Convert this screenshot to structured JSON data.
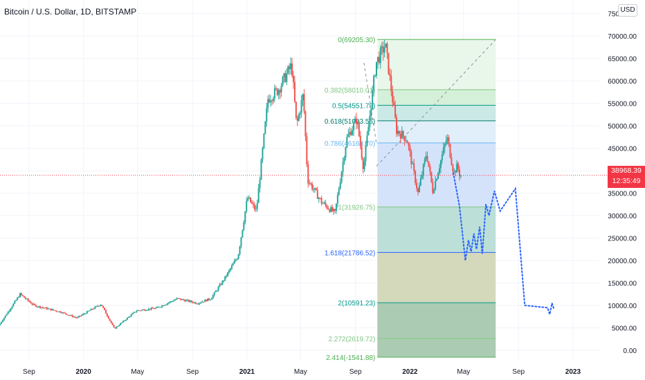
{
  "symbol_title": "Bitcoin / U.S. Dollar, 1D, BITSTAMP",
  "currency_button": "USD",
  "last_price": {
    "price": "38968.39",
    "countdown": "12:35:49"
  },
  "colors": {
    "up": "#26a69a",
    "down": "#ef5350",
    "projection": "#2962ff",
    "price_line": "#f23645",
    "trend_line": "#8a8f99"
  },
  "chart_data": {
    "type": "candlestick",
    "y_axis": {
      "ticks": [
        0,
        5000,
        10000,
        15000,
        20000,
        25000,
        30000,
        35000,
        40000,
        45000,
        50000,
        55000,
        60000,
        65000,
        70000,
        75000
      ],
      "tick_labels": [
        "0.00",
        "5000.00",
        "10000.00",
        "15000.00",
        "20000.00",
        "25000.00",
        "30000.00",
        "35000.00",
        "40000.00",
        "45000.00",
        "50000.00",
        "55000.00",
        "60000.00",
        "65000.00",
        "70000.00",
        "75000.00"
      ],
      "range": [
        -2000,
        78000
      ]
    },
    "x_axis": {
      "labels": [
        {
          "date": "2019-09-01",
          "text": "Sep",
          "bold": false
        },
        {
          "date": "2020-01-01",
          "text": "2020",
          "bold": true
        },
        {
          "date": "2020-05-01",
          "text": "May",
          "bold": false
        },
        {
          "date": "2020-09-01",
          "text": "Sep",
          "bold": false
        },
        {
          "date": "2021-01-01",
          "text": "2021",
          "bold": true
        },
        {
          "date": "2021-05-01",
          "text": "May",
          "bold": false
        },
        {
          "date": "2021-09-01",
          "text": "Sep",
          "bold": false
        },
        {
          "date": "2022-01-01",
          "text": "2022",
          "bold": true
        },
        {
          "date": "2022-05-01",
          "text": "May",
          "bold": false
        },
        {
          "date": "2022-09-01",
          "text": "Sep",
          "bold": false
        },
        {
          "date": "2023-01-01",
          "text": "2023",
          "bold": true
        }
      ],
      "range": [
        "2019-06-28",
        "2023-03-01"
      ]
    },
    "price_path": [
      {
        "date": "2019-06-28",
        "price": 5500
      },
      {
        "date": "2019-08-15",
        "price": 12500
      },
      {
        "date": "2019-09-15",
        "price": 10000
      },
      {
        "date": "2019-11-15",
        "price": 8500
      },
      {
        "date": "2019-12-20",
        "price": 7200
      },
      {
        "date": "2020-02-12",
        "price": 10300
      },
      {
        "date": "2020-03-13",
        "price": 4800
      },
      {
        "date": "2020-05-01",
        "price": 8800
      },
      {
        "date": "2020-06-15",
        "price": 9400
      },
      {
        "date": "2020-08-01",
        "price": 11500
      },
      {
        "date": "2020-09-15",
        "price": 10500
      },
      {
        "date": "2020-10-15",
        "price": 11500
      },
      {
        "date": "2020-11-15",
        "price": 16000
      },
      {
        "date": "2020-12-15",
        "price": 21000
      },
      {
        "date": "2021-01-05",
        "price": 34000
      },
      {
        "date": "2021-01-25",
        "price": 31000
      },
      {
        "date": "2021-02-20",
        "price": 56000
      },
      {
        "date": "2021-03-15",
        "price": 58000
      },
      {
        "date": "2021-04-14",
        "price": 63500
      },
      {
        "date": "2021-04-25",
        "price": 50000
      },
      {
        "date": "2021-05-10",
        "price": 57000
      },
      {
        "date": "2021-05-20",
        "price": 38000
      },
      {
        "date": "2021-06-20",
        "price": 33000
      },
      {
        "date": "2021-07-20",
        "price": 30500
      },
      {
        "date": "2021-08-15",
        "price": 47000
      },
      {
        "date": "2021-09-07",
        "price": 51500
      },
      {
        "date": "2021-09-22",
        "price": 40500
      },
      {
        "date": "2021-10-20",
        "price": 64000
      },
      {
        "date": "2021-11-10",
        "price": 68000
      },
      {
        "date": "2021-12-05",
        "price": 49000
      },
      {
        "date": "2021-12-28",
        "price": 47000
      },
      {
        "date": "2022-01-22",
        "price": 35000
      },
      {
        "date": "2022-02-10",
        "price": 44000
      },
      {
        "date": "2022-02-24",
        "price": 35500
      },
      {
        "date": "2022-03-28",
        "price": 47500
      },
      {
        "date": "2022-04-12",
        "price": 39500
      },
      {
        "date": "2022-04-20",
        "price": 41000
      },
      {
        "date": "2022-04-26",
        "price": 38968
      }
    ],
    "fibonacci": {
      "start_date": "2021-10-20",
      "end_date": "2022-07-12",
      "levels": [
        {
          "label": "0(69205.30)",
          "value": 69205.3,
          "color": "#4caf50",
          "fill": "#e8f5e9"
        },
        {
          "label": "0.382(58010.01)",
          "value": 58010.01,
          "color": "#81c784",
          "fill": "#d3efd6"
        },
        {
          "label": "0.5(54551.78)",
          "value": 54551.78,
          "color": "#009688",
          "fill": "#c8e9e6"
        },
        {
          "label": "0.618(51093.55)",
          "value": 51093.55,
          "color": "#00796b",
          "fill": "#dfeefa"
        },
        {
          "label": "0.786(46168.70)",
          "value": 46168.7,
          "color": "#64b5f6",
          "fill": "#d3e1fa"
        },
        {
          "label": "1(31926.75)",
          "value": 31926.75,
          "color": "#81c784",
          "fill": "#b8ddd6"
        },
        {
          "label": "1.618(21786.52)",
          "value": 21786.52,
          "color": "#2962ff",
          "fill": "#d2d7b7"
        },
        {
          "label": "2(10591.23)",
          "value": 10591.23,
          "color": "#009688",
          "fill": "#a6c9ae"
        },
        {
          "label": "2.272(2619.72)",
          "value": 2619.72,
          "color": "#81c784",
          "fill": "#a6c9ae"
        },
        {
          "label": "2.414(-1541.88)",
          "value": -1541.88,
          "color": "#4caf50",
          "fill": "#a6c9ae"
        }
      ]
    },
    "trend_lines": [
      {
        "from": {
          "date": "2021-09-20",
          "price": 64000
        },
        "to": {
          "date": "2021-10-18",
          "price": 46000
        }
      },
      {
        "from": {
          "date": "2021-10-18",
          "price": 41000
        },
        "to": {
          "date": "2022-07-12",
          "price": 69205.3
        }
      }
    ],
    "projection_path": [
      {
        "date": "2022-04-08",
        "price": 39500
      },
      {
        "date": "2022-04-22",
        "price": 32000
      },
      {
        "date": "2022-05-05",
        "price": 20000
      },
      {
        "date": "2022-05-12",
        "price": 24500
      },
      {
        "date": "2022-05-18",
        "price": 22000
      },
      {
        "date": "2022-05-24",
        "price": 26000
      },
      {
        "date": "2022-05-30",
        "price": 22500
      },
      {
        "date": "2022-06-06",
        "price": 27500
      },
      {
        "date": "2022-06-12",
        "price": 21500
      },
      {
        "date": "2022-06-20",
        "price": 32500
      },
      {
        "date": "2022-06-27",
        "price": 30000
      },
      {
        "date": "2022-07-09",
        "price": 35500
      },
      {
        "date": "2022-07-22",
        "price": 31000
      },
      {
        "date": "2022-08-25",
        "price": 36000
      },
      {
        "date": "2022-09-15",
        "price": 10000
      },
      {
        "date": "2022-11-05",
        "price": 9500
      },
      {
        "date": "2022-11-10",
        "price": 8000
      },
      {
        "date": "2022-11-15",
        "price": 10500
      },
      {
        "date": "2022-11-20",
        "price": 9000
      }
    ],
    "current_price": 38968.39
  }
}
